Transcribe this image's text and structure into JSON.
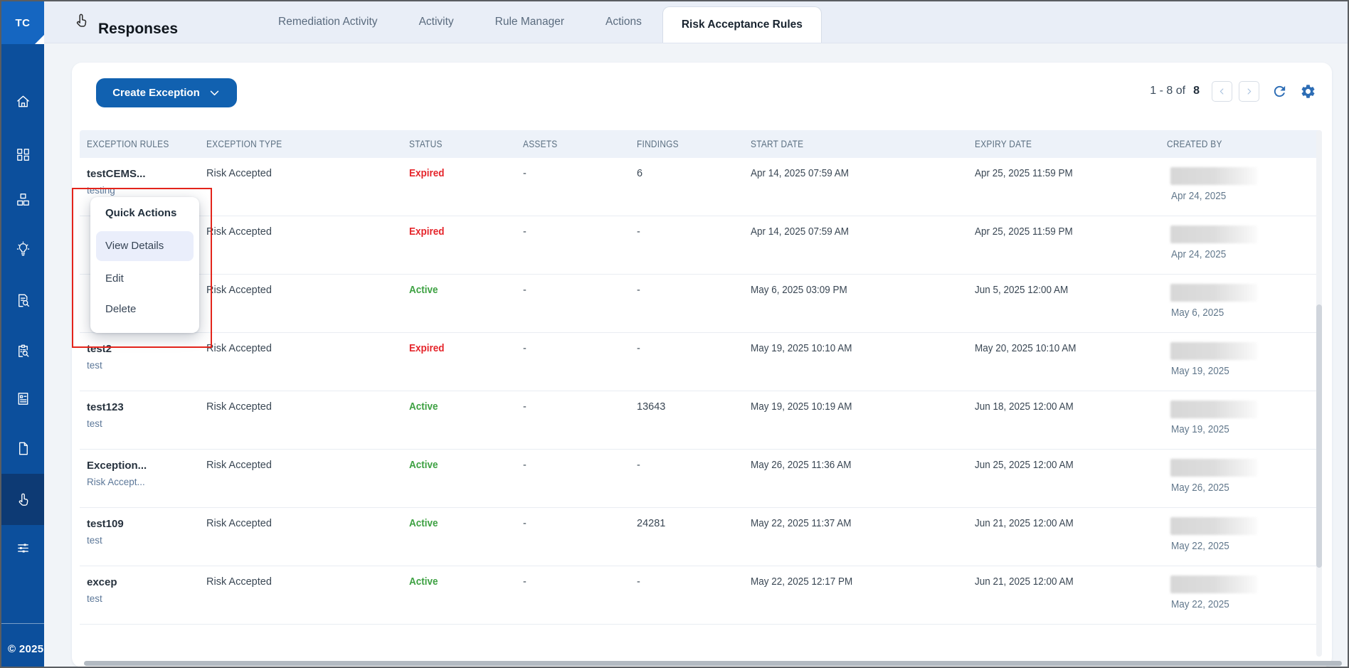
{
  "sidebar": {
    "avatar": "TC",
    "copyright": "© 2025",
    "items": [
      {
        "icon": "home",
        "active": false
      },
      {
        "icon": "dashboard",
        "active": false
      },
      {
        "icon": "blocks",
        "active": false
      },
      {
        "icon": "lightbulb",
        "active": false
      },
      {
        "icon": "document-search",
        "active": false
      },
      {
        "icon": "clipboard-search",
        "active": false
      },
      {
        "icon": "report",
        "active": false
      },
      {
        "icon": "file",
        "active": false
      },
      {
        "icon": "hand-pointer",
        "active": true
      },
      {
        "icon": "sliders",
        "active": false
      }
    ]
  },
  "topbar": {
    "title": "Responses",
    "tabs": [
      {
        "label": "Remediation Activity",
        "active": false
      },
      {
        "label": "Activity",
        "active": false
      },
      {
        "label": "Rule Manager",
        "active": false
      },
      {
        "label": "Actions",
        "active": false
      },
      {
        "label": "Risk Acceptance Rules",
        "active": true
      }
    ]
  },
  "toolbar": {
    "create_label": "Create Exception",
    "pagination_range": "1 - 8 of",
    "pagination_total": "8"
  },
  "table": {
    "columns": [
      "EXCEPTION RULES",
      "EXCEPTION TYPE",
      "STATUS",
      "ASSETS",
      "FINDINGS",
      "START DATE",
      "EXPIRY DATE",
      "CREATED BY"
    ],
    "rows": [
      {
        "name": "testCEMS...",
        "subtitle": "testing",
        "type": "Risk Accepted",
        "status": "Expired",
        "status_color": "red",
        "assets": "-",
        "findings": "6",
        "start": "Apr 14, 2025 07:59 AM",
        "expiry": "Apr 25, 2025 11:59 PM",
        "created": "Apr 24, 2025"
      },
      {
        "name": "",
        "subtitle": "",
        "type": "Risk Accepted",
        "status": "Expired",
        "status_color": "red",
        "assets": "-",
        "findings": "-",
        "start": "Apr 14, 2025 07:59 AM",
        "expiry": "Apr 25, 2025 11:59 PM",
        "created": "Apr 24, 2025"
      },
      {
        "name": "",
        "subtitle": "",
        "type": "Risk Accepted",
        "status": "Active",
        "status_color": "green",
        "assets": "-",
        "findings": "-",
        "start": "May 6, 2025 03:09 PM",
        "expiry": "Jun 5, 2025 12:00 AM",
        "created": "May 6, 2025"
      },
      {
        "name": "test2",
        "subtitle": "test",
        "type": "Risk Accepted",
        "status": "Expired",
        "status_color": "red",
        "assets": "-",
        "findings": "-",
        "start": "May 19, 2025 10:10 AM",
        "expiry": "May 20, 2025 10:10 AM",
        "created": "May 19, 2025"
      },
      {
        "name": "test123",
        "subtitle": "test",
        "type": "Risk Accepted",
        "status": "Active",
        "status_color": "green",
        "assets": "-",
        "findings": "13643",
        "start": "May 19, 2025 10:19 AM",
        "expiry": "Jun 18, 2025 12:00 AM",
        "created": "May 19, 2025"
      },
      {
        "name": "Exception...",
        "subtitle": "Risk Accept...",
        "type": "Risk Accepted",
        "status": "Active",
        "status_color": "green",
        "assets": "-",
        "findings": "-",
        "start": "May 26, 2025 11:36 AM",
        "expiry": "Jun 25, 2025 12:00 AM",
        "created": "May 26, 2025"
      },
      {
        "name": "test109",
        "subtitle": "test",
        "type": "Risk Accepted",
        "status": "Active",
        "status_color": "green",
        "assets": "-",
        "findings": "24281",
        "start": "May 22, 2025 11:37 AM",
        "expiry": "Jun 21, 2025 12:00 AM",
        "created": "May 22, 2025"
      },
      {
        "name": "excep",
        "subtitle": "test",
        "type": "Risk Accepted",
        "status": "Active",
        "status_color": "green",
        "assets": "-",
        "findings": "-",
        "start": "May 22, 2025 12:17 PM",
        "expiry": "Jun 21, 2025 12:00 AM",
        "created": "May 22, 2025"
      }
    ]
  },
  "quick_actions": {
    "title": "Quick Actions",
    "items": [
      "View Details",
      "Edit",
      "Delete"
    ],
    "highlighted": "View Details"
  },
  "colors": {
    "status_expired": "#e5252b",
    "status_active": "#3da142",
    "accent_blue": "#1161b0",
    "annotation_red": "#e3241b",
    "sidebar_blue": "#0c4f9c"
  }
}
